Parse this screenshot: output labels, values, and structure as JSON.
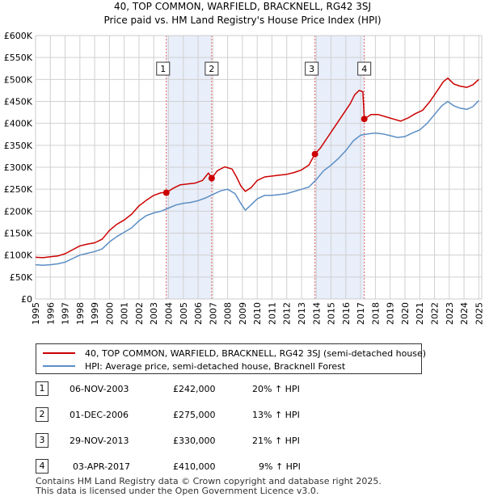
{
  "chart_data": {
    "type": "line",
    "title": "40, TOP COMMON, WARFIELD, BRACKNELL, RG42 3SJ",
    "subtitle": "Price paid vs. HM Land Registry's House Price Index (HPI)",
    "xlabel": "",
    "ylabel": "",
    "xlim": [
      1995,
      2025.2
    ],
    "ylim": [
      0,
      600000
    ],
    "x_ticks": [
      "1995",
      "1996",
      "1997",
      "1998",
      "1999",
      "2000",
      "2001",
      "2002",
      "2003",
      "2004",
      "2005",
      "2006",
      "2007",
      "2008",
      "2009",
      "2010",
      "2011",
      "2012",
      "2013",
      "2014",
      "2015",
      "2016",
      "2017",
      "2018",
      "2019",
      "2020",
      "2021",
      "2022",
      "2023",
      "2024",
      "2025"
    ],
    "y_ticks": [
      {
        "value": 0,
        "label": "£0"
      },
      {
        "value": 50000,
        "label": "£50K"
      },
      {
        "value": 100000,
        "label": "£100K"
      },
      {
        "value": 150000,
        "label": "£150K"
      },
      {
        "value": 200000,
        "label": "£200K"
      },
      {
        "value": 250000,
        "label": "£250K"
      },
      {
        "value": 300000,
        "label": "£300K"
      },
      {
        "value": 350000,
        "label": "£350K"
      },
      {
        "value": 400000,
        "label": "£400K"
      },
      {
        "value": 450000,
        "label": "£450K"
      },
      {
        "value": 500000,
        "label": "£500K"
      },
      {
        "value": 550000,
        "label": "£550K"
      },
      {
        "value": 600000,
        "label": "£600K"
      }
    ],
    "grid": true,
    "shaded_ranges": [
      [
        2003.85,
        2006.92
      ],
      [
        2013.91,
        2017.25
      ]
    ],
    "series": [
      {
        "name": "40, TOP COMMON, WARFIELD, BRACKNELL, RG42 3SJ (semi-detached house)",
        "color": "#cc0000",
        "points": [
          [
            1995.0,
            95000
          ],
          [
            1995.5,
            94000
          ],
          [
            1996.0,
            96000
          ],
          [
            1996.5,
            98000
          ],
          [
            1997.0,
            103000
          ],
          [
            1997.5,
            112000
          ],
          [
            1998.0,
            121000
          ],
          [
            1998.5,
            125000
          ],
          [
            1999.0,
            128000
          ],
          [
            1999.5,
            136000
          ],
          [
            2000.0,
            156000
          ],
          [
            2000.5,
            170000
          ],
          [
            2001.0,
            180000
          ],
          [
            2001.5,
            193000
          ],
          [
            2002.0,
            212000
          ],
          [
            2002.5,
            225000
          ],
          [
            2003.0,
            236000
          ],
          [
            2003.5,
            242000
          ],
          [
            2003.85,
            242000
          ],
          [
            2004.3,
            252000
          ],
          [
            2004.8,
            260000
          ],
          [
            2005.3,
            262000
          ],
          [
            2005.8,
            264000
          ],
          [
            2006.3,
            270000
          ],
          [
            2006.7,
            287000
          ],
          [
            2006.92,
            275000
          ],
          [
            2007.3,
            292000
          ],
          [
            2007.8,
            301000
          ],
          [
            2008.3,
            296000
          ],
          [
            2008.6,
            278000
          ],
          [
            2008.9,
            257000
          ],
          [
            2009.2,
            245000
          ],
          [
            2009.6,
            254000
          ],
          [
            2010.0,
            270000
          ],
          [
            2010.5,
            278000
          ],
          [
            2011.0,
            280000
          ],
          [
            2011.5,
            282000
          ],
          [
            2012.0,
            284000
          ],
          [
            2012.5,
            288000
          ],
          [
            2013.0,
            294000
          ],
          [
            2013.5,
            305000
          ],
          [
            2013.91,
            330000
          ],
          [
            2014.3,
            345000
          ],
          [
            2014.8,
            370000
          ],
          [
            2015.3,
            395000
          ],
          [
            2015.8,
            420000
          ],
          [
            2016.3,
            445000
          ],
          [
            2016.6,
            465000
          ],
          [
            2016.9,
            475000
          ],
          [
            2017.15,
            472000
          ],
          [
            2017.25,
            410000
          ],
          [
            2017.7,
            420000
          ],
          [
            2018.2,
            420000
          ],
          [
            2018.7,
            415000
          ],
          [
            2019.2,
            410000
          ],
          [
            2019.7,
            405000
          ],
          [
            2020.2,
            412000
          ],
          [
            2020.7,
            422000
          ],
          [
            2021.2,
            430000
          ],
          [
            2021.7,
            450000
          ],
          [
            2022.2,
            475000
          ],
          [
            2022.6,
            495000
          ],
          [
            2022.9,
            503000
          ],
          [
            2023.3,
            490000
          ],
          [
            2023.7,
            485000
          ],
          [
            2024.2,
            482000
          ],
          [
            2024.6,
            488000
          ],
          [
            2025.0,
            500000
          ]
        ]
      },
      {
        "name": "HPI: Average price, semi-detached house, Bracknell Forest",
        "color": "#5b8ec4",
        "points": [
          [
            1995.0,
            78000
          ],
          [
            1995.5,
            77000
          ],
          [
            1996.0,
            78000
          ],
          [
            1996.5,
            80000
          ],
          [
            1997.0,
            84000
          ],
          [
            1997.5,
            92000
          ],
          [
            1998.0,
            100000
          ],
          [
            1998.5,
            104000
          ],
          [
            1999.0,
            108000
          ],
          [
            1999.5,
            114000
          ],
          [
            2000.0,
            130000
          ],
          [
            2000.5,
            142000
          ],
          [
            2001.0,
            152000
          ],
          [
            2001.5,
            162000
          ],
          [
            2002.0,
            178000
          ],
          [
            2002.5,
            190000
          ],
          [
            2003.0,
            196000
          ],
          [
            2003.5,
            200000
          ],
          [
            2004.0,
            207000
          ],
          [
            2004.5,
            214000
          ],
          [
            2005.0,
            218000
          ],
          [
            2005.5,
            220000
          ],
          [
            2006.0,
            224000
          ],
          [
            2006.5,
            230000
          ],
          [
            2007.0,
            238000
          ],
          [
            2007.5,
            246000
          ],
          [
            2008.0,
            250000
          ],
          [
            2008.5,
            240000
          ],
          [
            2008.9,
            217000
          ],
          [
            2009.2,
            202000
          ],
          [
            2009.6,
            215000
          ],
          [
            2010.0,
            228000
          ],
          [
            2010.5,
            236000
          ],
          [
            2011.0,
            236000
          ],
          [
            2011.5,
            238000
          ],
          [
            2012.0,
            240000
          ],
          [
            2012.5,
            245000
          ],
          [
            2013.0,
            250000
          ],
          [
            2013.5,
            255000
          ],
          [
            2014.0,
            272000
          ],
          [
            2014.5,
            292000
          ],
          [
            2015.0,
            305000
          ],
          [
            2015.5,
            320000
          ],
          [
            2016.0,
            338000
          ],
          [
            2016.5,
            360000
          ],
          [
            2017.0,
            373000
          ],
          [
            2017.5,
            376000
          ],
          [
            2018.0,
            378000
          ],
          [
            2018.5,
            376000
          ],
          [
            2019.0,
            372000
          ],
          [
            2019.5,
            368000
          ],
          [
            2020.0,
            370000
          ],
          [
            2020.5,
            378000
          ],
          [
            2021.0,
            385000
          ],
          [
            2021.5,
            400000
          ],
          [
            2022.0,
            420000
          ],
          [
            2022.5,
            440000
          ],
          [
            2022.9,
            450000
          ],
          [
            2023.3,
            440000
          ],
          [
            2023.7,
            435000
          ],
          [
            2024.2,
            432000
          ],
          [
            2024.6,
            438000
          ],
          [
            2025.0,
            452000
          ]
        ]
      }
    ],
    "sale_markers": [
      {
        "label": "1",
        "x": 2003.85,
        "price": 242000
      },
      {
        "label": "2",
        "x": 2006.92,
        "price": 275000
      },
      {
        "label": "3",
        "x": 2013.91,
        "price": 330000
      },
      {
        "label": "4",
        "x": 2017.25,
        "price": 410000
      }
    ]
  },
  "legend": {
    "property_label": "40, TOP COMMON, WARFIELD, BRACKNELL, RG42 3SJ (semi-detached house)",
    "hpi_label": "HPI: Average price, semi-detached house, Bracknell Forest",
    "property_color": "#cc0000",
    "hpi_color": "#5b8ec4"
  },
  "sales": [
    {
      "num": "1",
      "date": "06-NOV-2003",
      "price": "£242,000",
      "hpi": "20% ↑ HPI"
    },
    {
      "num": "2",
      "date": "01-DEC-2006",
      "price": "£275,000",
      "hpi": "13% ↑ HPI"
    },
    {
      "num": "3",
      "date": "29-NOV-2013",
      "price": "£330,000",
      "hpi": "21% ↑ HPI"
    },
    {
      "num": "4",
      "date": "03-APR-2017",
      "price": "£410,000",
      "hpi": "9% ↑ HPI"
    }
  ],
  "footer": {
    "line1": "Contains HM Land Registry data © Crown copyright and database right 2025.",
    "line2": "This data is licensed under the Open Government Licence v3.0."
  }
}
